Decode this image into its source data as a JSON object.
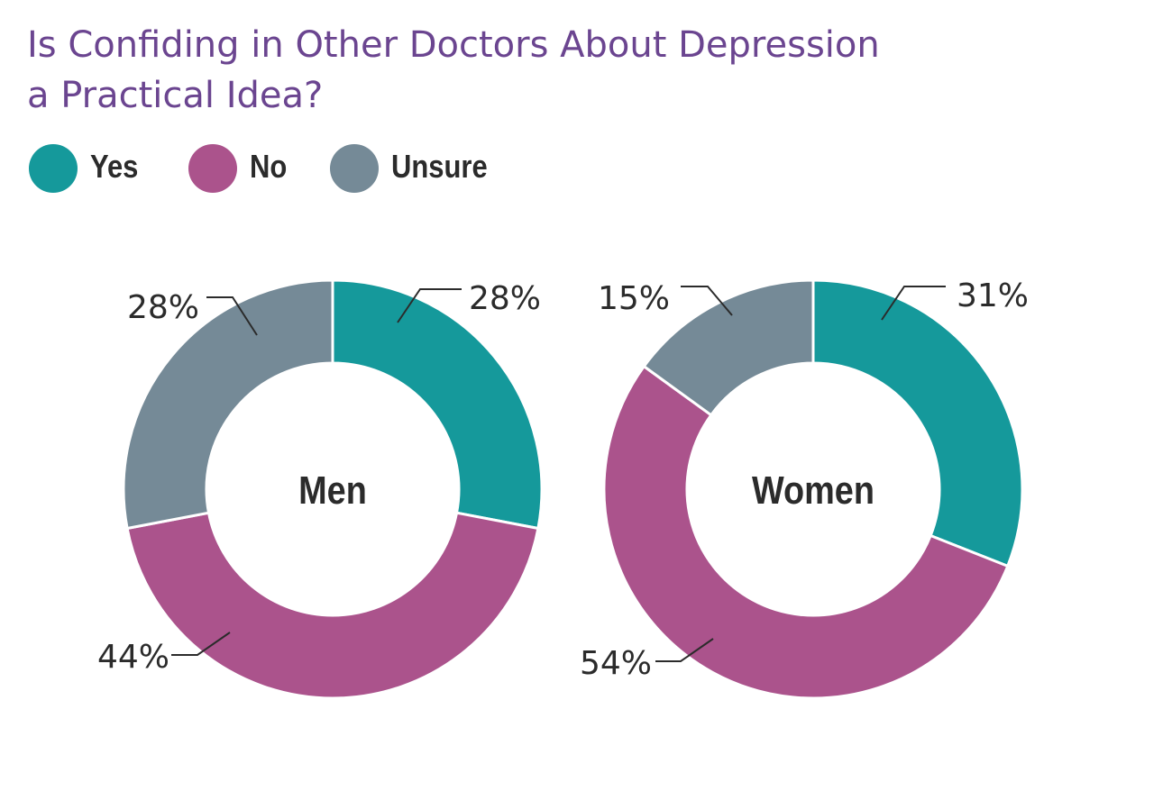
{
  "title_lines": [
    "Is Confiding in Other Doctors About Depression",
    "a Practical Idea?"
  ],
  "legend": [
    {
      "label": "Yes",
      "color": "#15999b"
    },
    {
      "label": "No",
      "color": "#ab538c"
    },
    {
      "label": "Unsure",
      "color": "#758a97"
    }
  ],
  "chart_data": [
    {
      "type": "pie",
      "title": "Is Confiding in Other Doctors About Depression a Practical Idea?",
      "center_label": "Men",
      "categories": [
        "Yes",
        "No",
        "Unsure"
      ],
      "values": [
        28,
        44,
        28
      ],
      "labels": [
        "28%",
        "44%",
        "28%"
      ],
      "colors": [
        "#15999b",
        "#ab538c",
        "#758a97"
      ],
      "legend_position": "top-left"
    },
    {
      "type": "pie",
      "title": "Is Confiding in Other Doctors About Depression a Practical Idea?",
      "center_label": "Women",
      "categories": [
        "Yes",
        "No",
        "Unsure"
      ],
      "values": [
        31,
        54,
        15
      ],
      "labels": [
        "31%",
        "54%",
        "15%"
      ],
      "colors": [
        "#15999b",
        "#ab538c",
        "#758a97"
      ],
      "legend_position": "top-left"
    }
  ]
}
